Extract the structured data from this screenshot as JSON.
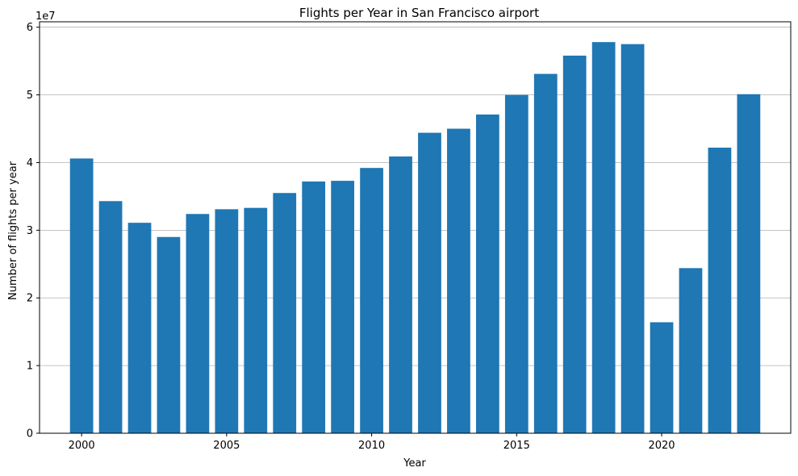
{
  "chart_data": {
    "type": "bar",
    "title": "Flights per Year in San Francisco airport",
    "xlabel": "Year",
    "ylabel": "Number of flights per year",
    "y_multiplier": "1e7",
    "x": [
      2000,
      2001,
      2002,
      2003,
      2004,
      2005,
      2006,
      2007,
      2008,
      2009,
      2010,
      2011,
      2012,
      2013,
      2014,
      2015,
      2016,
      2017,
      2018,
      2019,
      2020,
      2021,
      2022,
      2023
    ],
    "values": [
      40600000,
      34300000,
      31100000,
      29000000,
      32400000,
      33100000,
      33300000,
      35500000,
      37200000,
      37300000,
      39200000,
      40900000,
      44400000,
      45000000,
      47100000,
      50000000,
      53100000,
      55800000,
      57800000,
      57500000,
      16400000,
      24400000,
      42200000,
      50100000
    ],
    "x_ticks": [
      2000,
      2005,
      2010,
      2015,
      2020
    ],
    "x_tick_labels": [
      "2000",
      "2005",
      "2010",
      "2015",
      "2020"
    ],
    "y_ticks": [
      0,
      10000000,
      20000000,
      30000000,
      40000000,
      50000000,
      60000000
    ],
    "y_tick_labels": [
      "0",
      "1",
      "2",
      "3",
      "4",
      "5",
      "6"
    ],
    "xlim": [
      1998.55,
      2024.45
    ],
    "ylim": [
      0,
      60800000
    ],
    "bar_color": "#1f77b4",
    "grid": "y-axis only",
    "legend": "none"
  }
}
